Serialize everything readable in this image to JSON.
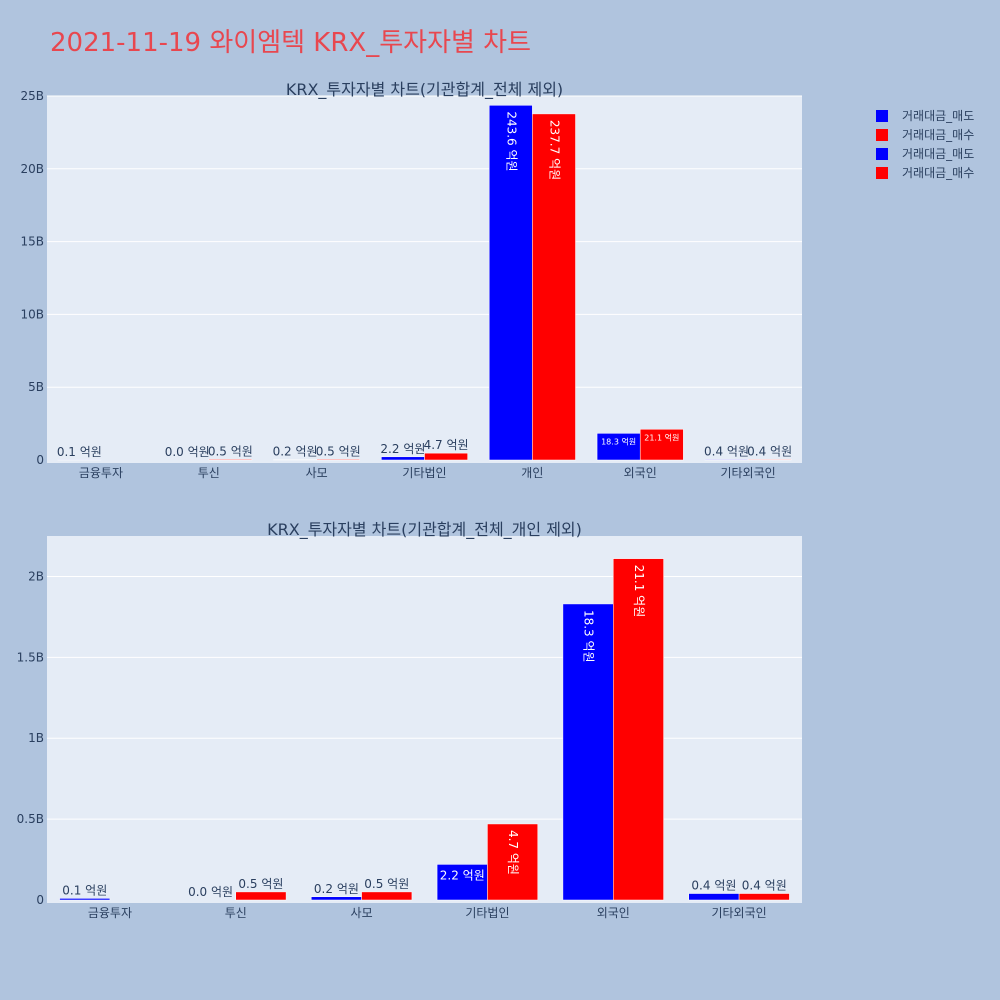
{
  "page_title": "2021-11-19 와이엠텍 KRX_투자자별 차트",
  "legend": [
    {
      "label": "거래대금_매도",
      "color": "#0000ff"
    },
    {
      "label": "거래대금_매수",
      "color": "#ff0000"
    },
    {
      "label": "거래대금_매도",
      "color": "#0000ff"
    },
    {
      "label": "거래대금_매수",
      "color": "#ff0000"
    }
  ],
  "chart_data": [
    {
      "type": "bar",
      "title": "KRX_투자자별 차트(기관합계_전체 제외)",
      "categories": [
        "금융투자",
        "투신",
        "사모",
        "기타법인",
        "개인",
        "외국인",
        "기타외국인"
      ],
      "ylim": [
        0,
        25000000000
      ],
      "yticks": [
        0,
        5000000000,
        10000000000,
        15000000000,
        20000000000,
        25000000000
      ],
      "ytick_labels": [
        "0",
        "5B",
        "10B",
        "15B",
        "20B",
        "25B"
      ],
      "grid": true,
      "series": [
        {
          "name": "거래대금_매도",
          "color": "#0000ff",
          "values": [
            10000000,
            0,
            20000000,
            220000000,
            24360000000,
            1830000000,
            40000000
          ],
          "labels": [
            "0.1 억원",
            "0.0 억원",
            "0.2 억원",
            "2.2 억원",
            "243.6 억원",
            "18.3 억원",
            "0.4 억원"
          ]
        },
        {
          "name": "거래대금_매수",
          "color": "#ff0000",
          "values": [
            null,
            50000000,
            50000000,
            470000000,
            23770000000,
            2110000000,
            40000000
          ],
          "labels": [
            "",
            "0.5 억원",
            "0.5 억원",
            "4.7 억원",
            "237.7 억원",
            "21.1 억원",
            "0.4 억원"
          ]
        }
      ]
    },
    {
      "type": "bar",
      "title": "KRX_투자자별 차트(기관합계_전체_개인 제외)",
      "categories": [
        "금융투자",
        "투신",
        "사모",
        "기타법인",
        "외국인",
        "기타외국인"
      ],
      "ylim": [
        0,
        2250000000
      ],
      "yticks": [
        0,
        500000000,
        1000000000,
        1500000000,
        2000000000
      ],
      "ytick_labels": [
        "0",
        "0.5B",
        "1B",
        "1.5B",
        "2B"
      ],
      "grid": true,
      "series": [
        {
          "name": "거래대금_매도",
          "color": "#0000ff",
          "values": [
            10000000,
            0,
            20000000,
            220000000,
            1830000000,
            40000000
          ],
          "labels": [
            "0.1 억원",
            "0.0 억원",
            "0.2 억원",
            "2.2 억원",
            "18.3 억원",
            "0.4 억원"
          ]
        },
        {
          "name": "거래대금_매수",
          "color": "#ff0000",
          "values": [
            null,
            50000000,
            50000000,
            470000000,
            2110000000,
            40000000
          ],
          "labels": [
            "",
            "0.5 억원",
            "0.5 억원",
            "4.7 억원",
            "21.1 억원",
            "0.4 억원"
          ]
        }
      ]
    }
  ]
}
